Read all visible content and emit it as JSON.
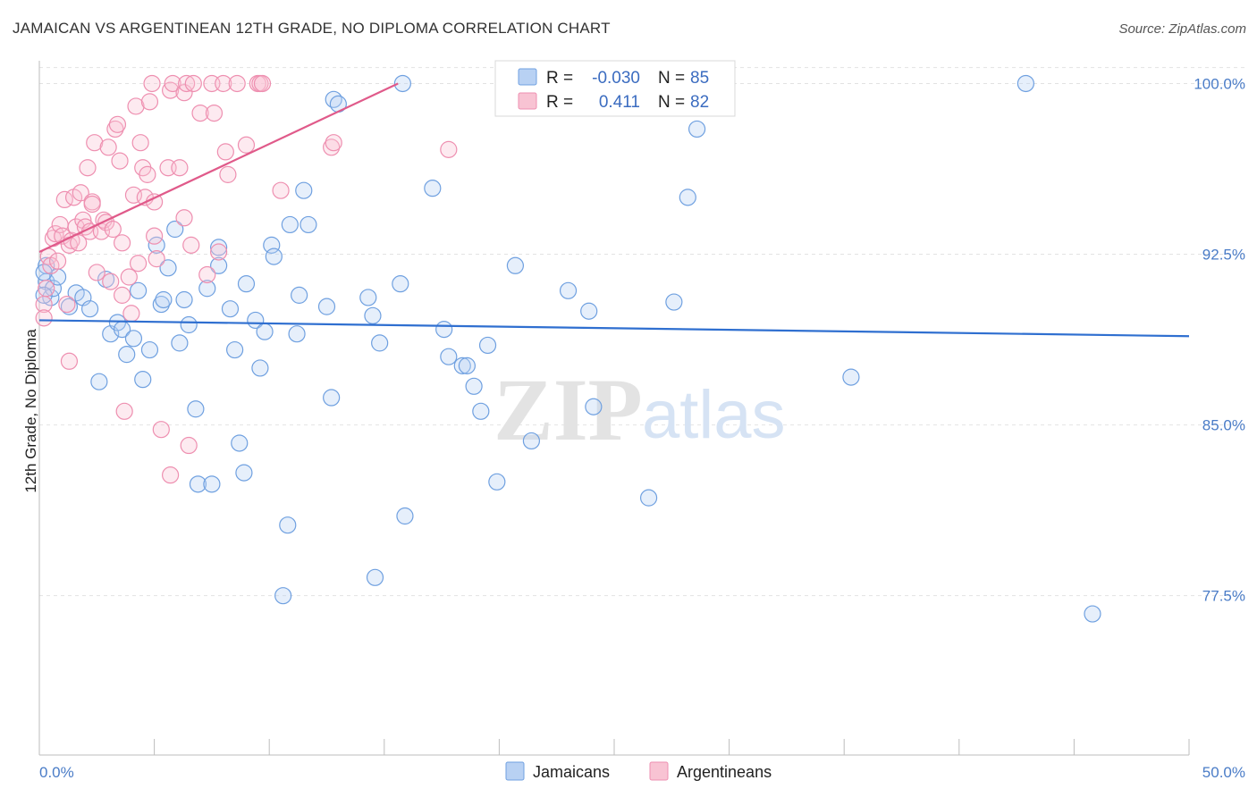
{
  "title": "JAMAICAN VS ARGENTINEAN 12TH GRADE, NO DIPLOMA CORRELATION CHART",
  "source": "Source: ZipAtlas.com",
  "watermark": {
    "zip": "ZIP",
    "atlas": "atlas"
  },
  "colors": {
    "jamaicans": "#6fa0e0",
    "argentineans": "#ee8fb0",
    "blue_line": "#2f6fd0",
    "pink_line": "#e05a8a"
  },
  "legend": {
    "r_label": "R =",
    "n_label": "N =",
    "rows": [
      {
        "r": "-0.030",
        "n": "85"
      },
      {
        "r": "0.411",
        "n": "82"
      }
    ]
  },
  "bottom_legend": [
    "Jamaicans",
    "Argentineans"
  ],
  "chart_data": {
    "type": "scatter",
    "title": "JAMAICAN VS ARGENTINEAN 12TH GRADE, NO DIPLOMA CORRELATION CHART",
    "xlabel": "",
    "ylabel": "12th Grade, No Diploma",
    "xlim": [
      0,
      50
    ],
    "ylim": [
      70.5,
      101
    ],
    "x_tick_labels": [
      "0.0%",
      "50.0%"
    ],
    "y_ticks": [
      77.5,
      85.0,
      92.5,
      100.0
    ],
    "y_tick_labels": [
      "77.5%",
      "85.0%",
      "92.5%",
      "100.0%"
    ],
    "grid": true,
    "legend_position": "top-center",
    "series": [
      {
        "name": "Jamaicans",
        "trend": {
          "x": [
            0,
            50
          ],
          "y": [
            89.6,
            88.9
          ]
        },
        "points": [
          [
            0.3,
            91.3
          ],
          [
            0.5,
            90.6
          ],
          [
            0.6,
            91.0
          ],
          [
            0.8,
            91.5
          ],
          [
            1.3,
            90.2
          ],
          [
            1.6,
            90.8
          ],
          [
            1.9,
            90.6
          ],
          [
            2.2,
            90.1
          ],
          [
            2.6,
            86.9
          ],
          [
            2.9,
            91.4
          ],
          [
            3.1,
            89.0
          ],
          [
            3.4,
            89.5
          ],
          [
            3.6,
            89.2
          ],
          [
            3.8,
            88.1
          ],
          [
            4.1,
            88.8
          ],
          [
            4.3,
            90.9
          ],
          [
            4.5,
            87.0
          ],
          [
            4.8,
            88.3
          ],
          [
            5.1,
            92.9
          ],
          [
            5.3,
            90.3
          ],
          [
            5.4,
            90.5
          ],
          [
            5.6,
            91.9
          ],
          [
            5.9,
            93.6
          ],
          [
            6.1,
            88.6
          ],
          [
            6.3,
            90.5
          ],
          [
            6.5,
            89.4
          ],
          [
            6.8,
            85.7
          ],
          [
            6.9,
            82.4
          ],
          [
            7.3,
            91.0
          ],
          [
            7.5,
            82.4
          ],
          [
            7.8,
            92.0
          ],
          [
            7.8,
            92.8
          ],
          [
            8.3,
            90.1
          ],
          [
            8.5,
            88.3
          ],
          [
            8.7,
            84.2
          ],
          [
            8.9,
            82.9
          ],
          [
            9.0,
            91.2
          ],
          [
            9.4,
            89.6
          ],
          [
            9.6,
            87.5
          ],
          [
            9.8,
            89.1
          ],
          [
            10.1,
            92.9
          ],
          [
            10.2,
            92.4
          ],
          [
            10.6,
            77.5
          ],
          [
            10.8,
            80.6
          ],
          [
            10.9,
            93.8
          ],
          [
            11.2,
            89.0
          ],
          [
            11.5,
            95.3
          ],
          [
            11.7,
            93.8
          ],
          [
            11.3,
            90.7
          ],
          [
            12.5,
            90.2
          ],
          [
            12.7,
            86.2
          ],
          [
            12.8,
            99.3
          ],
          [
            13.0,
            99.1
          ],
          [
            14.3,
            90.6
          ],
          [
            14.5,
            89.8
          ],
          [
            14.6,
            78.3
          ],
          [
            14.8,
            88.6
          ],
          [
            15.7,
            91.2
          ],
          [
            15.9,
            81.0
          ],
          [
            15.8,
            100.0
          ],
          [
            17.1,
            95.4
          ],
          [
            17.6,
            89.2
          ],
          [
            17.8,
            88.0
          ],
          [
            18.4,
            87.6
          ],
          [
            18.6,
            87.6
          ],
          [
            18.9,
            86.7
          ],
          [
            19.2,
            85.6
          ],
          [
            19.5,
            88.5
          ],
          [
            19.9,
            82.5
          ],
          [
            20.7,
            92.0
          ],
          [
            21.4,
            84.3
          ],
          [
            23.0,
            90.9
          ],
          [
            23.9,
            90.0
          ],
          [
            24.1,
            85.8
          ],
          [
            26.5,
            81.8
          ],
          [
            26.8,
            100.0
          ],
          [
            27.6,
            90.4
          ],
          [
            28.2,
            95.0
          ],
          [
            28.6,
            98.0
          ],
          [
            35.3,
            87.1
          ],
          [
            42.9,
            100.0
          ],
          [
            45.8,
            76.7
          ],
          [
            0.2,
            90.7
          ],
          [
            0.3,
            92.0
          ],
          [
            0.2,
            91.7
          ]
        ]
      },
      {
        "name": "Argentineans",
        "trend": {
          "x": [
            0,
            15.6
          ],
          "y": [
            92.6,
            100.0
          ]
        },
        "points": [
          [
            0.2,
            90.3
          ],
          [
            0.2,
            89.7
          ],
          [
            0.3,
            91.0
          ],
          [
            0.4,
            92.4
          ],
          [
            0.5,
            92.0
          ],
          [
            0.6,
            93.2
          ],
          [
            0.7,
            93.4
          ],
          [
            0.8,
            92.2
          ],
          [
            0.9,
            93.8
          ],
          [
            1.0,
            93.3
          ],
          [
            1.1,
            94.9
          ],
          [
            1.2,
            90.3
          ],
          [
            1.3,
            92.9
          ],
          [
            1.3,
            87.8
          ],
          [
            1.4,
            93.1
          ],
          [
            1.5,
            95.0
          ],
          [
            1.6,
            93.7
          ],
          [
            1.7,
            93.0
          ],
          [
            1.8,
            95.2
          ],
          [
            1.9,
            94.0
          ],
          [
            2.0,
            93.7
          ],
          [
            2.1,
            96.3
          ],
          [
            2.2,
            93.5
          ],
          [
            2.3,
            94.8
          ],
          [
            2.4,
            97.4
          ],
          [
            2.5,
            91.7
          ],
          [
            2.7,
            93.5
          ],
          [
            2.8,
            94.0
          ],
          [
            2.9,
            93.9
          ],
          [
            3.0,
            97.2
          ],
          [
            3.1,
            91.3
          ],
          [
            3.2,
            93.6
          ],
          [
            3.3,
            98.0
          ],
          [
            3.4,
            98.2
          ],
          [
            3.5,
            96.6
          ],
          [
            3.6,
            90.7
          ],
          [
            3.7,
            85.6
          ],
          [
            3.9,
            91.5
          ],
          [
            4.0,
            89.9
          ],
          [
            4.1,
            95.1
          ],
          [
            4.2,
            99.0
          ],
          [
            4.3,
            92.1
          ],
          [
            4.4,
            97.4
          ],
          [
            4.5,
            96.3
          ],
          [
            4.6,
            95.0
          ],
          [
            4.7,
            96.0
          ],
          [
            4.8,
            99.2
          ],
          [
            4.9,
            100.0
          ],
          [
            5.0,
            93.3
          ],
          [
            5.1,
            92.3
          ],
          [
            5.3,
            84.8
          ],
          [
            5.6,
            96.3
          ],
          [
            5.7,
            99.7
          ],
          [
            5.7,
            82.8
          ],
          [
            5.8,
            100.0
          ],
          [
            6.1,
            96.3
          ],
          [
            6.3,
            99.6
          ],
          [
            6.4,
            100.0
          ],
          [
            6.5,
            84.1
          ],
          [
            6.6,
            92.9
          ],
          [
            6.7,
            100.0
          ],
          [
            7.0,
            98.7
          ],
          [
            7.3,
            91.6
          ],
          [
            7.5,
            100.0
          ],
          [
            7.6,
            98.7
          ],
          [
            7.8,
            92.6
          ],
          [
            8.0,
            100.0
          ],
          [
            8.1,
            97.0
          ],
          [
            8.2,
            96.0
          ],
          [
            8.6,
            100.0
          ],
          [
            9.0,
            97.3
          ],
          [
            9.5,
            100.0
          ],
          [
            9.6,
            100.0
          ],
          [
            9.7,
            100.0
          ],
          [
            10.5,
            95.3
          ],
          [
            12.7,
            97.2
          ],
          [
            12.8,
            97.4
          ],
          [
            17.8,
            97.1
          ],
          [
            5.0,
            94.8
          ],
          [
            2.3,
            94.7
          ],
          [
            6.3,
            94.1
          ],
          [
            3.6,
            93.0
          ]
        ]
      }
    ]
  }
}
